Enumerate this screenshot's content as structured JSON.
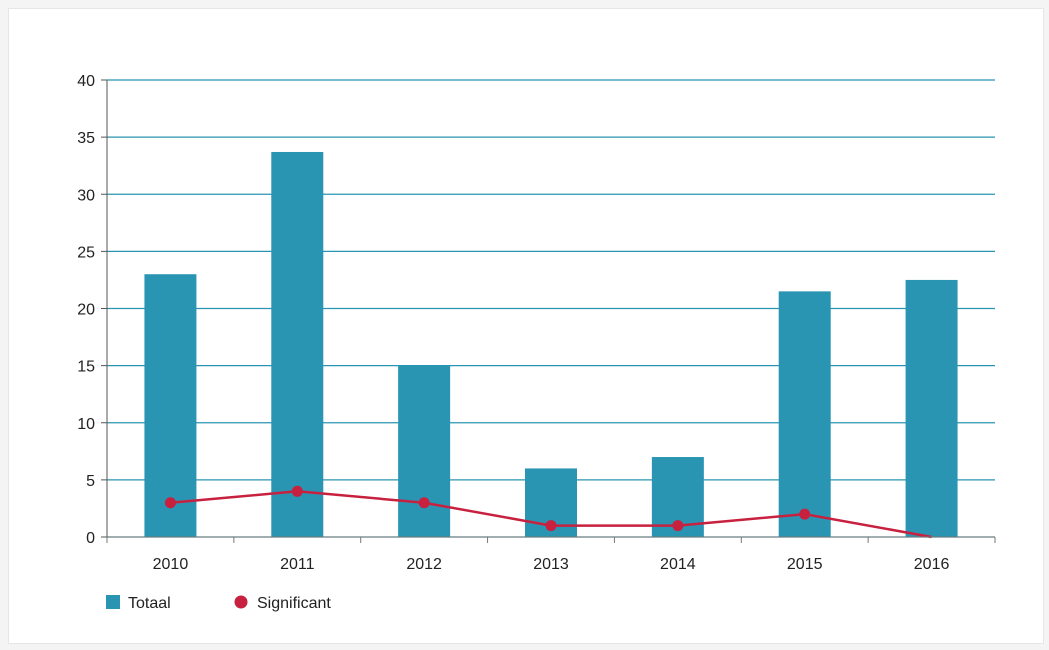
{
  "chart_data": {
    "type": "bar",
    "categories": [
      "2010",
      "2011",
      "2012",
      "2013",
      "2014",
      "2015",
      "2016"
    ],
    "series": [
      {
        "name": "Totaal",
        "type": "bar",
        "color": "#2a95b2",
        "values": [
          23,
          33.7,
          15,
          6,
          7,
          21.5,
          22.5
        ]
      },
      {
        "name": "Significant",
        "type": "line",
        "color": "#c8203f",
        "values": [
          3,
          4,
          3,
          1,
          1,
          2,
          0
        ]
      }
    ],
    "yticks": [
      "0",
      "5",
      "10",
      "15",
      "20",
      "25",
      "30",
      "35",
      "40"
    ],
    "ylim": [
      0,
      40
    ],
    "grid": true,
    "legend": "bottom-left",
    "title": "",
    "xlabel": "",
    "ylabel": ""
  }
}
